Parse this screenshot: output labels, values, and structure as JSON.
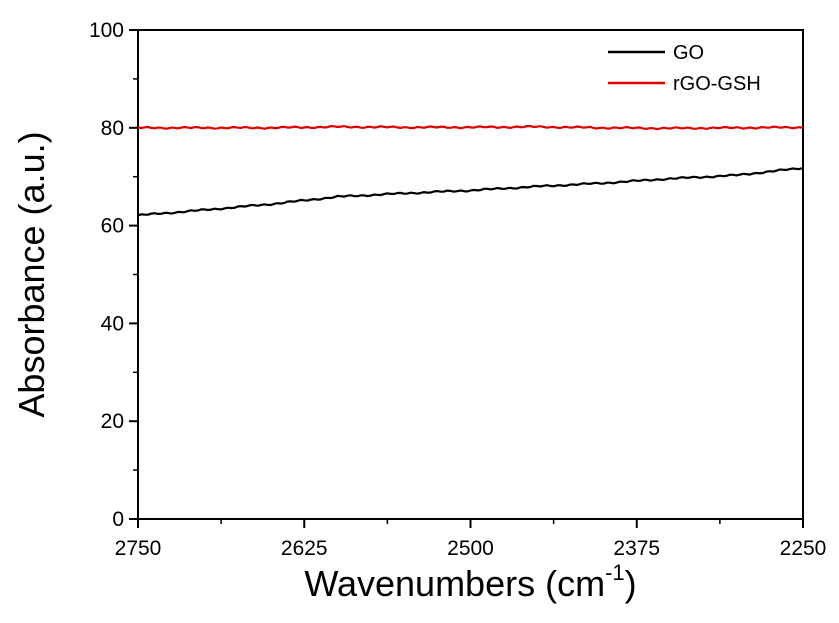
{
  "chart_data": {
    "type": "line",
    "xlabel": "Wavenumbers (cm",
    "xlabel_superscript": "-1",
    "xlabel_close": ")",
    "ylabel": "Absorbance (a.u.)",
    "xlim": [
      2750,
      2250
    ],
    "x_reversed": true,
    "ylim": [
      0,
      100
    ],
    "x_ticks": [
      2750,
      2625,
      2500,
      2375,
      2250
    ],
    "x_tick_labels": [
      "2750",
      "2625",
      "2500",
      "2375",
      "2250"
    ],
    "y_ticks": [
      0,
      20,
      40,
      60,
      80,
      100
    ],
    "y_tick_labels": [
      "0",
      "20",
      "40",
      "60",
      "80",
      "100"
    ],
    "grid": false,
    "legend_position": "top-right",
    "x": [
      2750,
      2700,
      2650,
      2600,
      2550,
      2500,
      2450,
      2400,
      2350,
      2300,
      2250
    ],
    "series": [
      {
        "name": "GO",
        "color": "#000000",
        "values": [
          62.1,
          63.2,
          64.4,
          65.9,
          66.6,
          67.2,
          68.0,
          68.7,
          69.6,
          70.3,
          71.8
        ]
      },
      {
        "name": "rGO-GSH",
        "color": "#e00000",
        "values": [
          80.0,
          80.0,
          80.0,
          80.2,
          80.1,
          80.1,
          80.2,
          80.0,
          79.9,
          80.0,
          80.1
        ]
      }
    ]
  }
}
